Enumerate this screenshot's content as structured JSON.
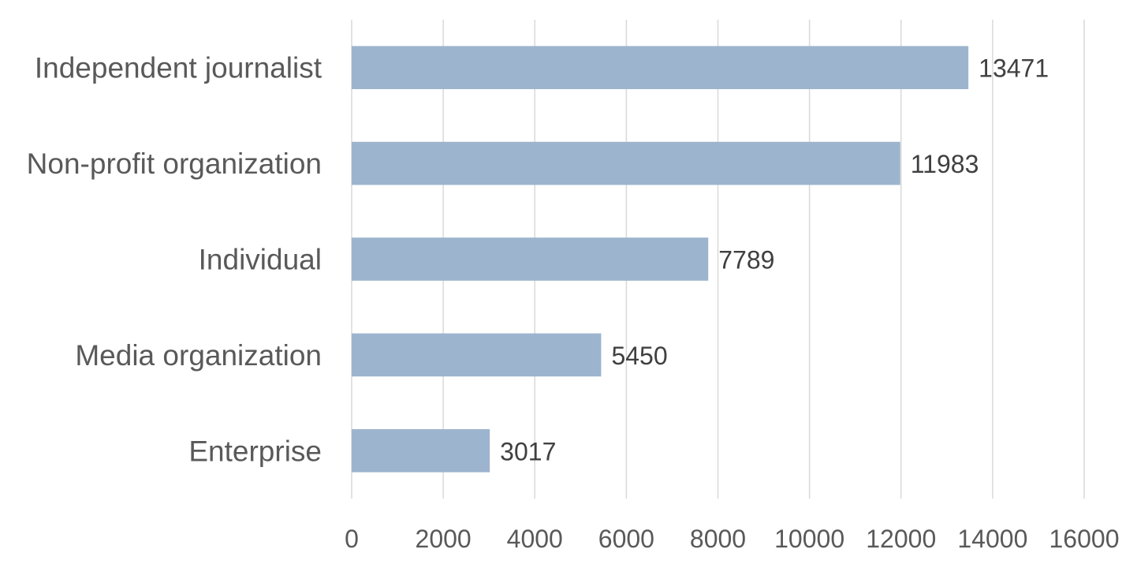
{
  "chart_data": {
    "type": "bar",
    "orientation": "horizontal",
    "title": "",
    "xlabel": "",
    "ylabel": "",
    "categories": [
      "Independent journalist",
      "Non-profit organization",
      "Individual",
      "Media organization",
      "Enterprise"
    ],
    "values": [
      13471,
      11983,
      7789,
      5450,
      3017
    ],
    "xlim": [
      0,
      16000
    ],
    "x_ticks": [
      "0",
      "2000",
      "4000",
      "6000",
      "8000",
      "10000",
      "12000",
      "14000",
      "16000"
    ],
    "grid": true,
    "legend": "none",
    "colors": {
      "bar": "#9db4ce",
      "grid": "#d9d9d9",
      "category_text": "#595959",
      "value_text": "#404040"
    }
  }
}
